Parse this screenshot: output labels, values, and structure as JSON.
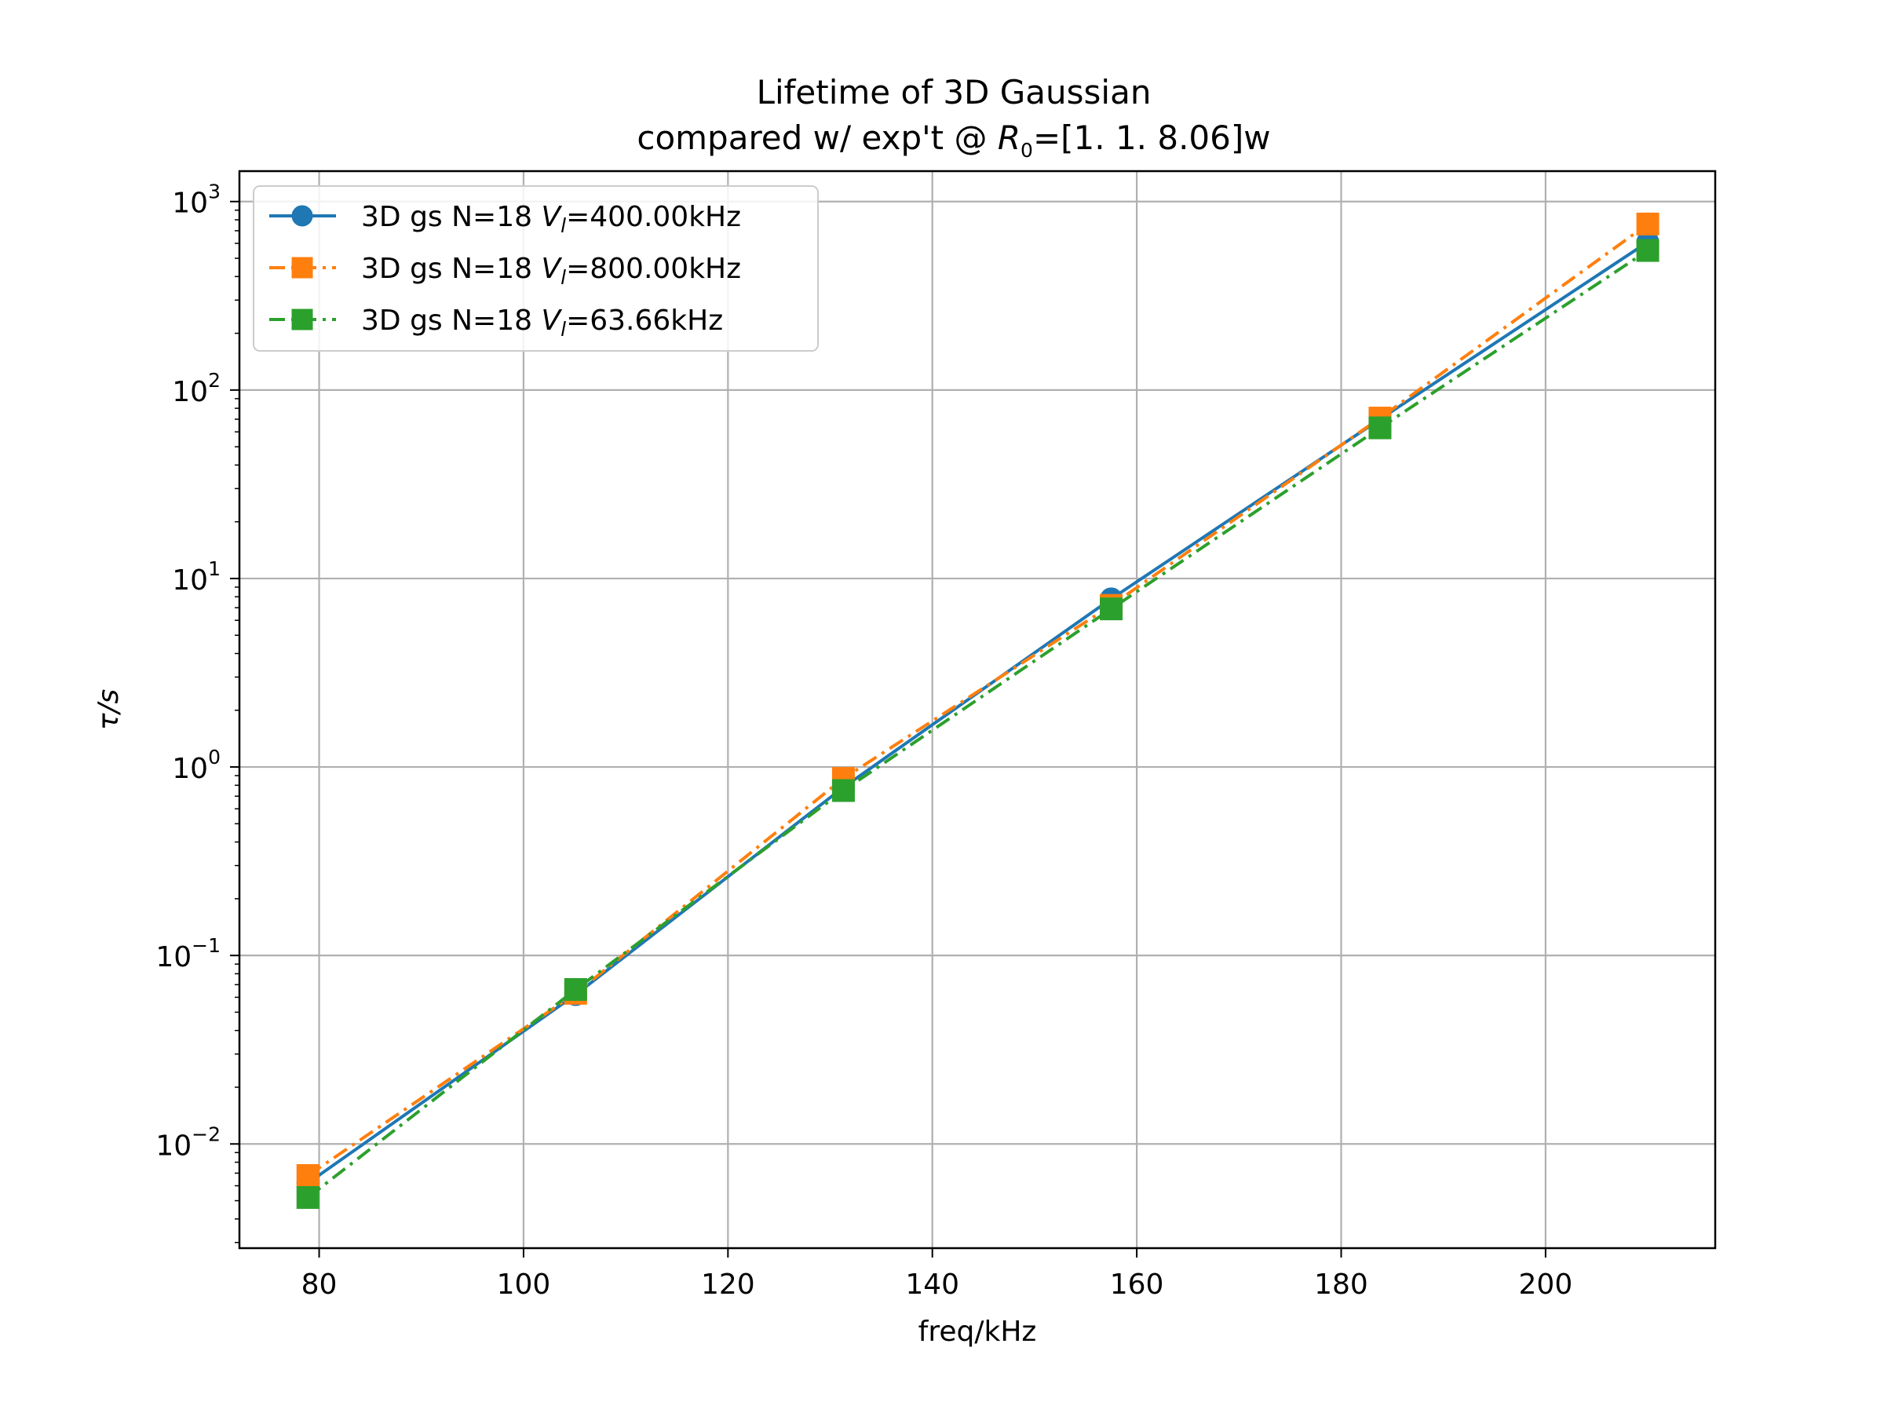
{
  "chart_data": {
    "type": "line",
    "title": "Lifetime of 3D Gaussian",
    "subtitle": {
      "prefix": "compared w/ exp't @ ",
      "symbol": "R",
      "subscript": "0",
      "suffix": "=[1.   1.   8.06]w"
    },
    "xlabel": "freq/kHz",
    "ylabel": "τ/s",
    "xlim": [
      72.2,
      216.6
    ],
    "ylim": [
      0.0028,
      1450
    ],
    "y_scale": "log",
    "grid": true,
    "legend_position": "upper-left",
    "x_ticks": [
      80,
      100,
      120,
      140,
      160,
      180,
      200
    ],
    "y_ticks": [
      {
        "value": 0.01,
        "base": "10",
        "exponent": "−2"
      },
      {
        "value": 0.1,
        "base": "10",
        "exponent": "−1"
      },
      {
        "value": 1,
        "base": "10",
        "exponent": "0"
      },
      {
        "value": 10,
        "base": "10",
        "exponent": "1"
      },
      {
        "value": 100,
        "base": "10",
        "exponent": "2"
      },
      {
        "value": 1000,
        "base": "10",
        "exponent": "3"
      }
    ],
    "x": [
      78.9,
      105.1,
      131.3,
      157.5,
      183.8,
      210.0
    ],
    "series": [
      {
        "label": {
          "prefix": "3D gs N=18 ",
          "symbol": "V",
          "subscript": "l",
          "suffix": "=400.00kHz"
        },
        "values": [
          0.0062,
          0.062,
          0.78,
          7.8,
          70,
          610
        ],
        "color": "#1f77b4",
        "marker": "circle",
        "line_style": "solid"
      },
      {
        "label": {
          "prefix": "3D gs N=18 ",
          "symbol": "V",
          "subscript": "l",
          "suffix": "=800.00kHz"
        },
        "values": [
          0.0068,
          0.063,
          0.87,
          7.2,
          71,
          760
        ],
        "color": "#ff7f0e",
        "marker": "square",
        "line_style": "dash-dot"
      },
      {
        "label": {
          "prefix": "3D gs N=18 ",
          "symbol": "V",
          "subscript": "l",
          "suffix": "=63.66kHz"
        },
        "values": [
          0.0052,
          0.066,
          0.75,
          6.9,
          63,
          550
        ],
        "color": "#2ca02c",
        "marker": "square",
        "line_style": "dash-dot"
      }
    ]
  }
}
